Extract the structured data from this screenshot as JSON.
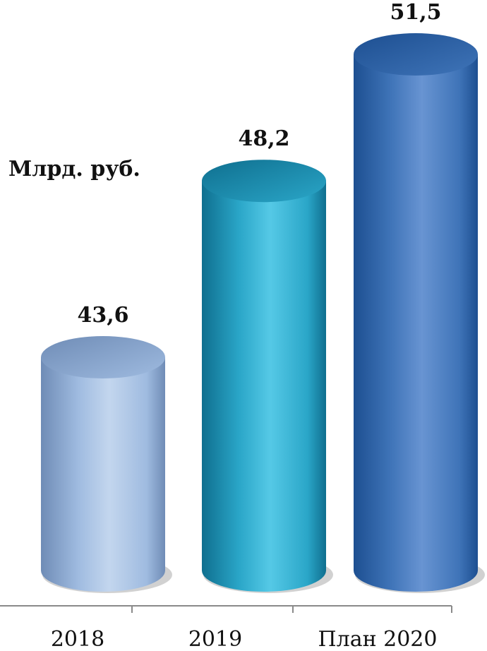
{
  "chart_data": {
    "type": "bar",
    "style": "3d-cylinder",
    "categories": [
      "2018",
      "2019",
      "План 2020"
    ],
    "values": [
      43.6,
      48.2,
      51.5
    ],
    "value_labels": [
      "43,6",
      "48,2",
      "51,5"
    ],
    "unit_label": "Млрд. руб.",
    "title": "",
    "xlabel": "",
    "ylabel": "",
    "grid": false,
    "legend": "none",
    "colors": [
      "#9fbbe0",
      "#2aa6c8",
      "#3f74b8"
    ],
    "dark_colors": [
      "#6f8cb6",
      "#0f6f8f",
      "#1d4f91"
    ],
    "light_colors": [
      "#c3d6ee",
      "#55c9e6",
      "#6894d2"
    ]
  }
}
